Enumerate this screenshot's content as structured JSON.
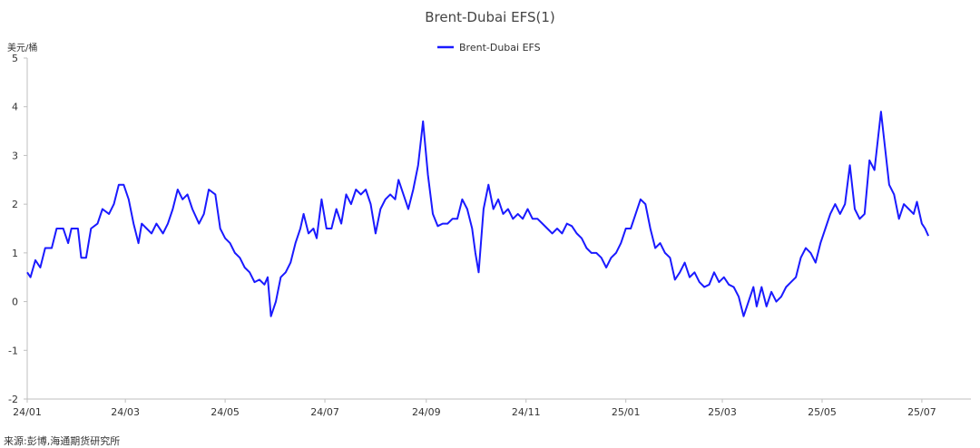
{
  "chart_data": {
    "type": "line",
    "title": "Brent-Dubai EFS(1)",
    "unit_label": "美元/桶",
    "ylim": [
      -2,
      5
    ],
    "yticks": [
      -2,
      -1,
      0,
      1,
      2,
      3,
      4,
      5
    ],
    "x_range": [
      "2024-01-01",
      "2025-07-31"
    ],
    "xticks": [
      {
        "date": "2024-01-01",
        "label": "24/01"
      },
      {
        "date": "2024-03-01",
        "label": "24/03"
      },
      {
        "date": "2024-05-01",
        "label": "24/05"
      },
      {
        "date": "2024-07-01",
        "label": "24/07"
      },
      {
        "date": "2024-09-01",
        "label": "24/09"
      },
      {
        "date": "2024-11-01",
        "label": "24/11"
      },
      {
        "date": "2025-01-01",
        "label": "25/01"
      },
      {
        "date": "2025-03-01",
        "label": "25/03"
      },
      {
        "date": "2025-05-01",
        "label": "25/05"
      },
      {
        "date": "2025-07-01",
        "label": "25/07"
      }
    ],
    "legend_position": "top-center",
    "grid": false,
    "series": [
      {
        "name": "Brent-Dubai EFS",
        "color": "#1a1aff",
        "points": [
          [
            "2024-01-01",
            0.6
          ],
          [
            "2024-01-03",
            0.5
          ],
          [
            "2024-01-06",
            0.85
          ],
          [
            "2024-01-09",
            0.7
          ],
          [
            "2024-01-12",
            1.1
          ],
          [
            "2024-01-16",
            1.1
          ],
          [
            "2024-01-19",
            1.5
          ],
          [
            "2024-01-23",
            1.5
          ],
          [
            "2024-01-26",
            1.2
          ],
          [
            "2024-01-28",
            1.5
          ],
          [
            "2024-02-01",
            1.5
          ],
          [
            "2024-02-03",
            0.9
          ],
          [
            "2024-02-06",
            0.9
          ],
          [
            "2024-02-09",
            1.5
          ],
          [
            "2024-02-13",
            1.6
          ],
          [
            "2024-02-16",
            1.9
          ],
          [
            "2024-02-20",
            1.8
          ],
          [
            "2024-02-23",
            2.0
          ],
          [
            "2024-02-26",
            2.4
          ],
          [
            "2024-02-29",
            2.4
          ],
          [
            "2024-03-03",
            2.1
          ],
          [
            "2024-03-06",
            1.6
          ],
          [
            "2024-03-09",
            1.2
          ],
          [
            "2024-03-11",
            1.6
          ],
          [
            "2024-03-14",
            1.5
          ],
          [
            "2024-03-17",
            1.4
          ],
          [
            "2024-03-20",
            1.6
          ],
          [
            "2024-03-24",
            1.4
          ],
          [
            "2024-03-27",
            1.6
          ],
          [
            "2024-03-30",
            1.9
          ],
          [
            "2024-04-02",
            2.3
          ],
          [
            "2024-04-05",
            2.1
          ],
          [
            "2024-04-08",
            2.2
          ],
          [
            "2024-04-11",
            1.9
          ],
          [
            "2024-04-15",
            1.6
          ],
          [
            "2024-04-18",
            1.8
          ],
          [
            "2024-04-21",
            2.3
          ],
          [
            "2024-04-25",
            2.2
          ],
          [
            "2024-04-28",
            1.5
          ],
          [
            "2024-05-01",
            1.3
          ],
          [
            "2024-05-04",
            1.2
          ],
          [
            "2024-05-07",
            1.0
          ],
          [
            "2024-05-10",
            0.9
          ],
          [
            "2024-05-13",
            0.7
          ],
          [
            "2024-05-16",
            0.6
          ],
          [
            "2024-05-19",
            0.4
          ],
          [
            "2024-05-22",
            0.45
          ],
          [
            "2024-05-25",
            0.35
          ],
          [
            "2024-05-27",
            0.5
          ],
          [
            "2024-05-29",
            -0.3
          ],
          [
            "2024-06-01",
            0.0
          ],
          [
            "2024-06-04",
            0.5
          ],
          [
            "2024-06-07",
            0.6
          ],
          [
            "2024-06-10",
            0.8
          ],
          [
            "2024-06-13",
            1.2
          ],
          [
            "2024-06-16",
            1.5
          ],
          [
            "2024-06-18",
            1.8
          ],
          [
            "2024-06-21",
            1.4
          ],
          [
            "2024-06-24",
            1.5
          ],
          [
            "2024-06-26",
            1.3
          ],
          [
            "2024-06-29",
            2.1
          ],
          [
            "2024-07-02",
            1.5
          ],
          [
            "2024-07-05",
            1.5
          ],
          [
            "2024-07-08",
            1.9
          ],
          [
            "2024-07-11",
            1.6
          ],
          [
            "2024-07-14",
            2.2
          ],
          [
            "2024-07-17",
            2.0
          ],
          [
            "2024-07-20",
            2.3
          ],
          [
            "2024-07-23",
            2.2
          ],
          [
            "2024-07-26",
            2.3
          ],
          [
            "2024-07-29",
            2.0
          ],
          [
            "2024-08-01",
            1.4
          ],
          [
            "2024-08-04",
            1.9
          ],
          [
            "2024-08-07",
            2.1
          ],
          [
            "2024-08-10",
            2.2
          ],
          [
            "2024-08-13",
            2.1
          ],
          [
            "2024-08-15",
            2.5
          ],
          [
            "2024-08-18",
            2.2
          ],
          [
            "2024-08-21",
            1.9
          ],
          [
            "2024-08-24",
            2.3
          ],
          [
            "2024-08-27",
            2.8
          ],
          [
            "2024-08-30",
            3.7
          ],
          [
            "2024-09-02",
            2.6
          ],
          [
            "2024-09-05",
            1.8
          ],
          [
            "2024-09-08",
            1.55
          ],
          [
            "2024-09-11",
            1.6
          ],
          [
            "2024-09-14",
            1.6
          ],
          [
            "2024-09-17",
            1.7
          ],
          [
            "2024-09-20",
            1.7
          ],
          [
            "2024-09-23",
            2.1
          ],
          [
            "2024-09-26",
            1.9
          ],
          [
            "2024-09-29",
            1.5
          ],
          [
            "2024-10-01",
            1.0
          ],
          [
            "2024-10-03",
            0.6
          ],
          [
            "2024-10-06",
            1.9
          ],
          [
            "2024-10-09",
            2.4
          ],
          [
            "2024-10-12",
            1.9
          ],
          [
            "2024-10-15",
            2.1
          ],
          [
            "2024-10-18",
            1.8
          ],
          [
            "2024-10-21",
            1.9
          ],
          [
            "2024-10-24",
            1.7
          ],
          [
            "2024-10-27",
            1.8
          ],
          [
            "2024-10-30",
            1.7
          ],
          [
            "2024-11-02",
            1.9
          ],
          [
            "2024-11-05",
            1.7
          ],
          [
            "2024-11-08",
            1.7
          ],
          [
            "2024-11-11",
            1.6
          ],
          [
            "2024-11-14",
            1.5
          ],
          [
            "2024-11-17",
            1.4
          ],
          [
            "2024-11-20",
            1.5
          ],
          [
            "2024-11-23",
            1.4
          ],
          [
            "2024-11-26",
            1.6
          ],
          [
            "2024-11-29",
            1.55
          ],
          [
            "2024-12-02",
            1.4
          ],
          [
            "2024-12-05",
            1.3
          ],
          [
            "2024-12-08",
            1.1
          ],
          [
            "2024-12-11",
            1.0
          ],
          [
            "2024-12-14",
            1.0
          ],
          [
            "2024-12-17",
            0.9
          ],
          [
            "2024-12-20",
            0.7
          ],
          [
            "2024-12-23",
            0.9
          ],
          [
            "2024-12-26",
            1.0
          ],
          [
            "2024-12-29",
            1.2
          ],
          [
            "2025-01-01",
            1.5
          ],
          [
            "2025-01-04",
            1.5
          ],
          [
            "2025-01-07",
            1.8
          ],
          [
            "2025-01-10",
            2.1
          ],
          [
            "2025-01-13",
            2.0
          ],
          [
            "2025-01-16",
            1.5
          ],
          [
            "2025-01-19",
            1.1
          ],
          [
            "2025-01-22",
            1.2
          ],
          [
            "2025-01-25",
            1.0
          ],
          [
            "2025-01-28",
            0.9
          ],
          [
            "2025-01-31",
            0.45
          ],
          [
            "2025-02-03",
            0.6
          ],
          [
            "2025-02-06",
            0.8
          ],
          [
            "2025-02-09",
            0.5
          ],
          [
            "2025-02-12",
            0.6
          ],
          [
            "2025-02-15",
            0.4
          ],
          [
            "2025-02-18",
            0.3
          ],
          [
            "2025-02-21",
            0.35
          ],
          [
            "2025-02-24",
            0.6
          ],
          [
            "2025-02-27",
            0.4
          ],
          [
            "2025-03-02",
            0.5
          ],
          [
            "2025-03-05",
            0.35
          ],
          [
            "2025-03-08",
            0.3
          ],
          [
            "2025-03-11",
            0.1
          ],
          [
            "2025-03-14",
            -0.3
          ],
          [
            "2025-03-17",
            0.0
          ],
          [
            "2025-03-20",
            0.3
          ],
          [
            "2025-03-22",
            -0.1
          ],
          [
            "2025-03-25",
            0.3
          ],
          [
            "2025-03-28",
            -0.1
          ],
          [
            "2025-03-31",
            0.2
          ],
          [
            "2025-04-03",
            0.0
          ],
          [
            "2025-04-06",
            0.1
          ],
          [
            "2025-04-09",
            0.3
          ],
          [
            "2025-04-12",
            0.4
          ],
          [
            "2025-04-15",
            0.5
          ],
          [
            "2025-04-18",
            0.9
          ],
          [
            "2025-04-21",
            1.1
          ],
          [
            "2025-04-24",
            1.0
          ],
          [
            "2025-04-27",
            0.8
          ],
          [
            "2025-04-30",
            1.2
          ],
          [
            "2025-05-03",
            1.5
          ],
          [
            "2025-05-06",
            1.8
          ],
          [
            "2025-05-09",
            2.0
          ],
          [
            "2025-05-12",
            1.8
          ],
          [
            "2025-05-15",
            2.0
          ],
          [
            "2025-05-18",
            2.8
          ],
          [
            "2025-05-21",
            1.9
          ],
          [
            "2025-05-24",
            1.7
          ],
          [
            "2025-05-27",
            1.8
          ],
          [
            "2025-05-30",
            2.9
          ],
          [
            "2025-06-02",
            2.7
          ],
          [
            "2025-06-04",
            3.3
          ],
          [
            "2025-06-06",
            3.9
          ],
          [
            "2025-06-08",
            3.3
          ],
          [
            "2025-06-11",
            2.4
          ],
          [
            "2025-06-14",
            2.2
          ],
          [
            "2025-06-17",
            1.7
          ],
          [
            "2025-06-20",
            2.0
          ],
          [
            "2025-06-23",
            1.9
          ],
          [
            "2025-06-26",
            1.8
          ],
          [
            "2025-06-28",
            2.05
          ],
          [
            "2025-07-01",
            1.6
          ],
          [
            "2025-07-03",
            1.5
          ],
          [
            "2025-07-05",
            1.35
          ]
        ]
      }
    ]
  },
  "source_text": "来源:彭博,海通期货研究所"
}
